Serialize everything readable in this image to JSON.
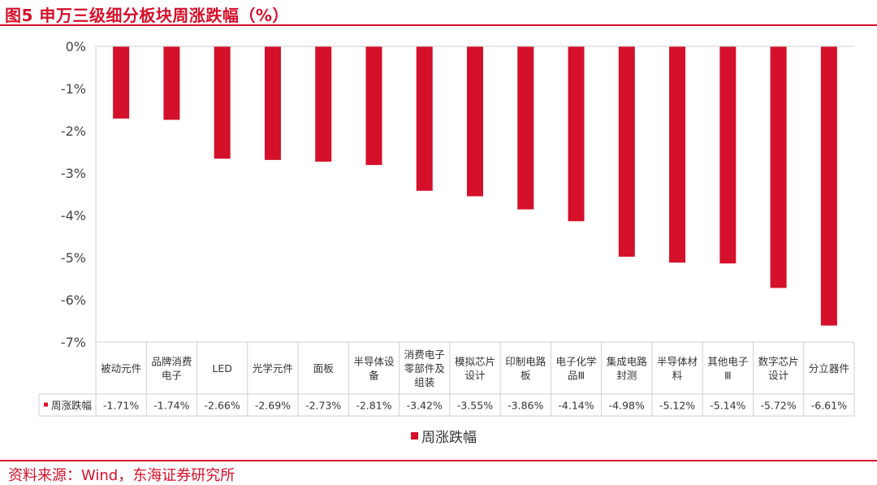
{
  "figure": {
    "title": "图5  申万三级细分板块周涨跌幅（%）",
    "source": "资料来源：Wind，东海证券研究所"
  },
  "colors": {
    "bar": "#d4102a",
    "accent": "#d4102a",
    "grid": "#d0d0d0"
  },
  "chart_data": {
    "type": "bar",
    "categories": [
      "被动元件",
      "品牌消费电子",
      "LED",
      "光学元件",
      "面板",
      "半导体设备",
      "消费电子零部件及组装",
      "模拟芯片设计",
      "印制电路板",
      "电子化学品Ⅲ",
      "集成电路封测",
      "半导体材料",
      "其他电子Ⅲ",
      "数字芯片设计",
      "分立器件"
    ],
    "category_lines": [
      [
        "被动元件"
      ],
      [
        "品牌消费",
        "电子"
      ],
      [
        "LED"
      ],
      [
        "光学元件"
      ],
      [
        "面板"
      ],
      [
        "半导体设",
        "备"
      ],
      [
        "消费电子",
        "零部件及",
        "组装"
      ],
      [
        "模拟芯片",
        "设计"
      ],
      [
        "印制电路",
        "板"
      ],
      [
        "电子化学",
        "品Ⅲ"
      ],
      [
        "集成电路",
        "封测"
      ],
      [
        "半导体材",
        "料"
      ],
      [
        "其他电子",
        "Ⅲ"
      ],
      [
        "数字芯片",
        "设计"
      ],
      [
        "分立器件"
      ]
    ],
    "series": [
      {
        "name": "周涨跌幅",
        "values": [
          -1.71,
          -1.74,
          -2.66,
          -2.69,
          -2.73,
          -2.81,
          -3.42,
          -3.55,
          -3.86,
          -4.14,
          -4.98,
          -5.12,
          -5.14,
          -5.72,
          -6.61
        ]
      }
    ],
    "value_labels": [
      "-1.71%",
      "-1.74%",
      "-2.66%",
      "-2.69%",
      "-2.73%",
      "-2.81%",
      "-3.42%",
      "-3.55%",
      "-3.86%",
      "-4.14%",
      "-4.98%",
      "-5.12%",
      "-5.14%",
      "-5.72%",
      "-6.61%"
    ],
    "ylim": [
      -7,
      0
    ],
    "yticks": [
      0,
      -1,
      -2,
      -3,
      -4,
      -5,
      -6,
      -7
    ],
    "ytick_labels": [
      "0%",
      "-1%",
      "-2%",
      "-3%",
      "-4%",
      "-5%",
      "-6%",
      "-7%"
    ],
    "data_table": true,
    "legend_position": "bottom-center",
    "grid": false
  }
}
